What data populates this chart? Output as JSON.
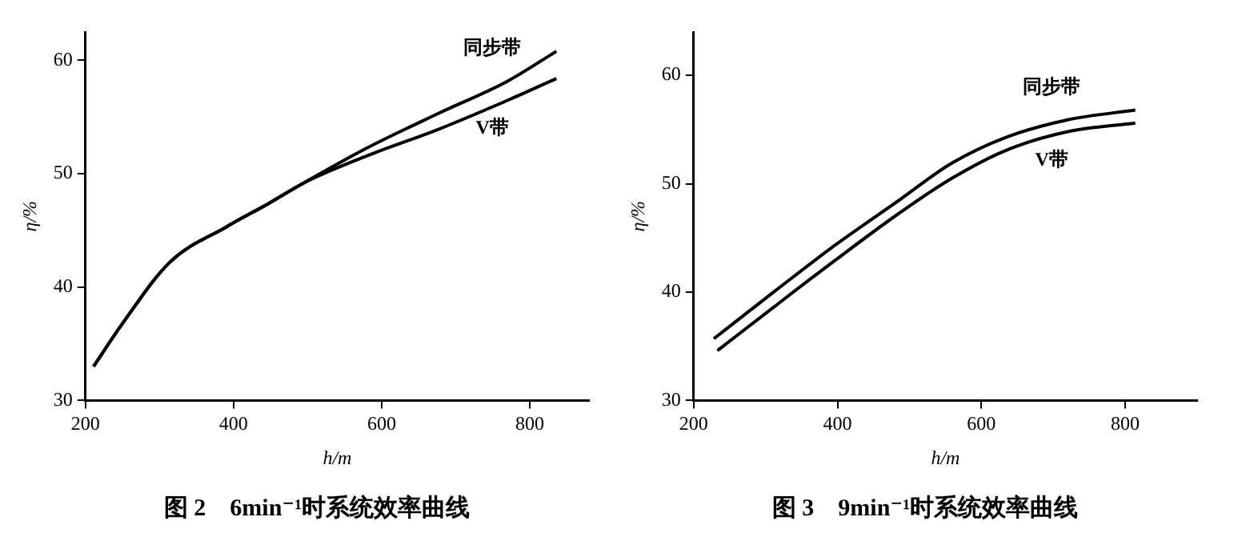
{
  "chart_data": [
    {
      "type": "line",
      "title": "图 2　6min⁻¹时系统效率曲线",
      "xlabel": "h/m",
      "ylabel": "η/%",
      "xlim": [
        200,
        880
      ],
      "ylim": [
        30,
        62.5
      ],
      "xticks": [
        200,
        400,
        600,
        800
      ],
      "yticks": [
        30,
        40,
        50,
        60
      ],
      "grid": false,
      "legend": false,
      "marker": "none",
      "line_style": "solid",
      "series": [
        {
          "name": "同步带",
          "color": "#000000",
          "x": [
            211,
            248,
            314,
            390,
            448,
            495,
            581,
            676,
            771,
            836
          ],
          "values": [
            33,
            36.6,
            42.2,
            45.3,
            47.4,
            49.2,
            52.3,
            55.3,
            58.2,
            60.8
          ]
        },
        {
          "name": "V带",
          "color": "#000000",
          "x": [
            211,
            248,
            314,
            390,
            448,
            495,
            581,
            676,
            771,
            836
          ],
          "values": [
            33,
            36.6,
            42.2,
            45.3,
            47.4,
            49.2,
            51.6,
            53.9,
            56.5,
            58.4
          ]
        }
      ]
    },
    {
      "type": "line",
      "title": "图 3　9min⁻¹时系统效率曲线",
      "xlabel": "h/m",
      "ylabel": "η/%",
      "xlim": [
        200,
        900
      ],
      "ylim": [
        30,
        64
      ],
      "xticks": [
        200,
        400,
        600,
        800
      ],
      "yticks": [
        30,
        40,
        50,
        60
      ],
      "grid": false,
      "legend": false,
      "marker": "none",
      "line_style": "solid",
      "series": [
        {
          "name": "同步带",
          "color": "#000000",
          "x": [
            228,
            313,
            398,
            484,
            559,
            635,
            720,
            814
          ],
          "values": [
            35.7,
            40.1,
            44.4,
            48.4,
            51.9,
            54.3,
            55.9,
            56.8
          ]
        },
        {
          "name": "V带",
          "color": "#000000",
          "x": [
            233,
            313,
            398,
            484,
            559,
            635,
            720,
            814
          ],
          "values": [
            34.6,
            38.7,
            43.0,
            47.2,
            50.5,
            53.1,
            54.8,
            55.6
          ]
        }
      ]
    }
  ]
}
